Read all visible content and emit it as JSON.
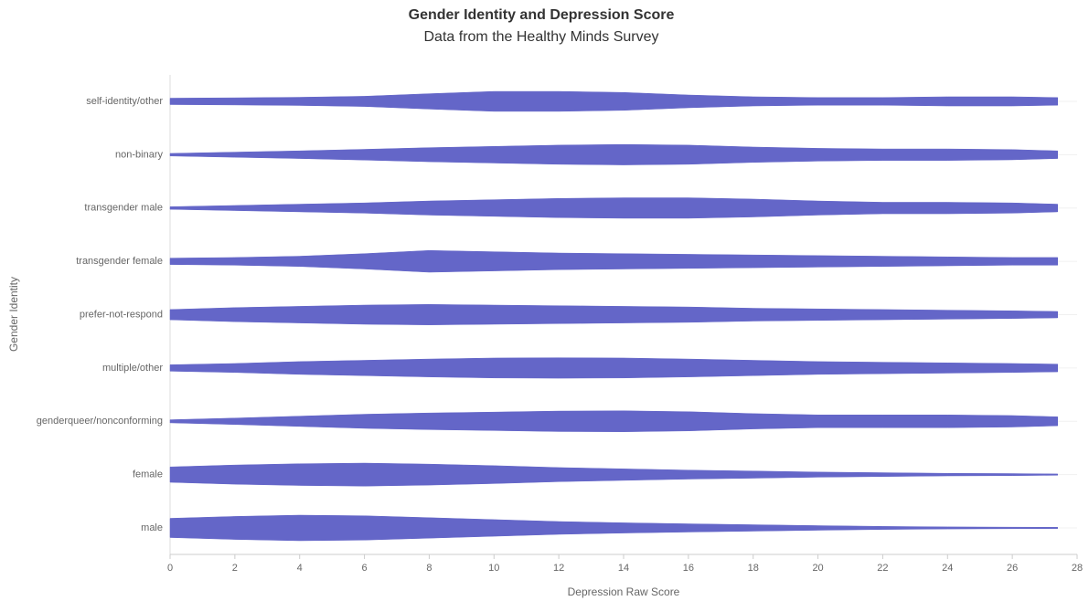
{
  "chart_data": {
    "type": "violin",
    "title": "Gender Identity and Depression Score",
    "subtitle": "Data from the Healthy Minds Survey",
    "x_label": "Depression Raw Score",
    "y_label": "Gender Identity",
    "color": "#6466c8",
    "grid": true,
    "xlim": [
      0,
      28
    ],
    "xticks": [
      0,
      2,
      4,
      6,
      8,
      10,
      12,
      14,
      16,
      18,
      20,
      22,
      24,
      26,
      28
    ],
    "x": [
      0,
      2,
      4,
      6,
      8,
      10,
      12,
      14,
      16,
      18,
      20,
      22,
      24,
      26,
      27.4
    ],
    "series": [
      {
        "name": "self-identity/other",
        "values": [
          0.25,
          0.28,
          0.32,
          0.4,
          0.6,
          0.78,
          0.78,
          0.7,
          0.5,
          0.36,
          0.3,
          0.3,
          0.36,
          0.36,
          0.3
        ]
      },
      {
        "name": "non-binary",
        "values": [
          0.1,
          0.2,
          0.3,
          0.42,
          0.55,
          0.65,
          0.75,
          0.8,
          0.75,
          0.6,
          0.5,
          0.45,
          0.45,
          0.4,
          0.3
        ]
      },
      {
        "name": "transgender male",
        "values": [
          0.1,
          0.2,
          0.3,
          0.4,
          0.55,
          0.65,
          0.75,
          0.8,
          0.8,
          0.7,
          0.55,
          0.45,
          0.45,
          0.4,
          0.3
        ]
      },
      {
        "name": "transgender female",
        "values": [
          0.25,
          0.3,
          0.4,
          0.6,
          0.85,
          0.75,
          0.65,
          0.6,
          0.55,
          0.5,
          0.45,
          0.4,
          0.35,
          0.3,
          0.3
        ]
      },
      {
        "name": "prefer-not-respond",
        "values": [
          0.4,
          0.55,
          0.65,
          0.75,
          0.8,
          0.75,
          0.7,
          0.65,
          0.6,
          0.5,
          0.45,
          0.4,
          0.35,
          0.3,
          0.25
        ]
      },
      {
        "name": "multiple/other",
        "values": [
          0.25,
          0.35,
          0.5,
          0.6,
          0.7,
          0.78,
          0.8,
          0.78,
          0.7,
          0.6,
          0.5,
          0.45,
          0.4,
          0.35,
          0.3
        ]
      },
      {
        "name": "genderqueer/nonconforming",
        "values": [
          0.12,
          0.25,
          0.4,
          0.55,
          0.65,
          0.72,
          0.8,
          0.82,
          0.75,
          0.6,
          0.5,
          0.5,
          0.5,
          0.45,
          0.35
        ]
      },
      {
        "name": "female",
        "values": [
          0.6,
          0.75,
          0.85,
          0.9,
          0.82,
          0.7,
          0.55,
          0.45,
          0.35,
          0.28,
          0.2,
          0.15,
          0.1,
          0.08,
          0.05
        ]
      },
      {
        "name": "male",
        "values": [
          0.75,
          0.9,
          1.0,
          0.95,
          0.8,
          0.65,
          0.5,
          0.4,
          0.32,
          0.25,
          0.18,
          0.12,
          0.08,
          0.06,
          0.05
        ]
      }
    ]
  }
}
